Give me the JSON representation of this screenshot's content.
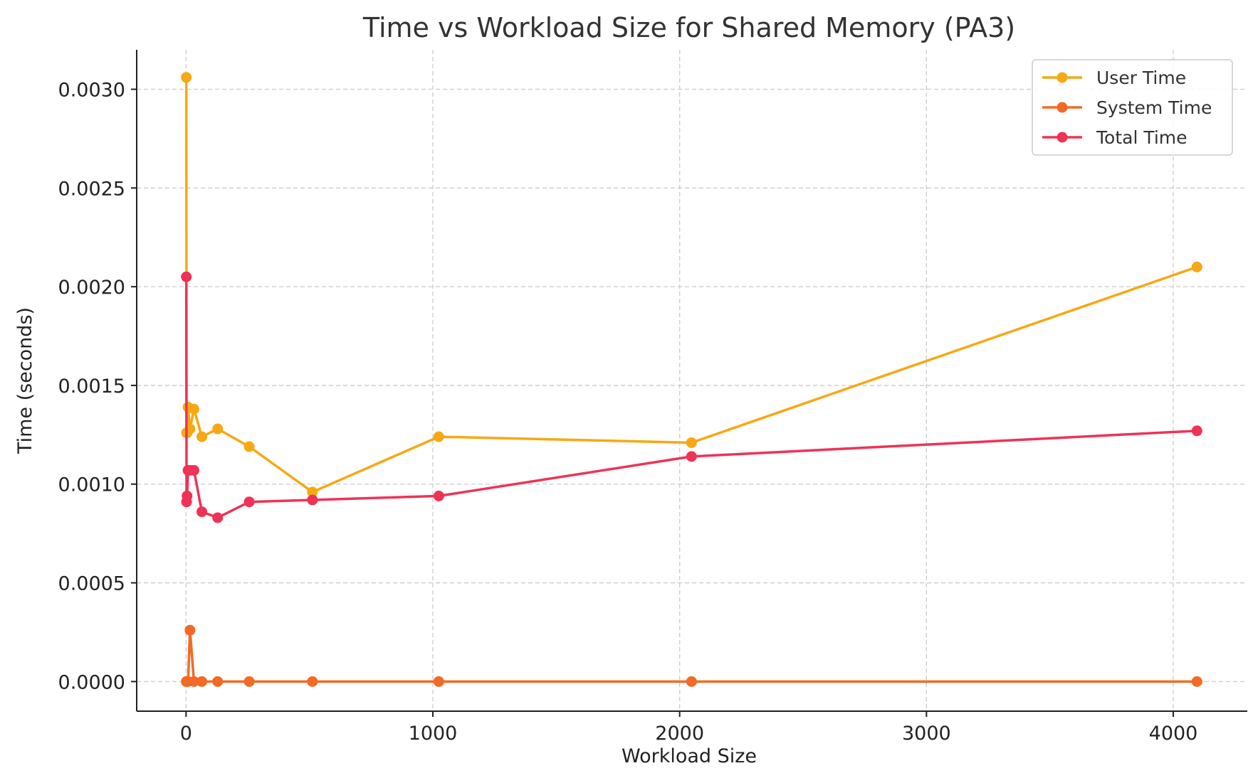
{
  "chart_data": {
    "type": "line",
    "title": "Time vs Workload Size for Shared Memory (PA3)",
    "xlabel": "Workload Size",
    "ylabel": "Time (seconds)",
    "xlim": [
      -200,
      4300
    ],
    "ylim": [
      -0.00015,
      0.0032
    ],
    "x_ticks": [
      0,
      1000,
      2000,
      3000,
      4000
    ],
    "x_tick_labels": [
      "0",
      "1000",
      "2000",
      "3000",
      "4000"
    ],
    "y_ticks": [
      0.0,
      0.0005,
      0.001,
      0.0015,
      0.002,
      0.0025,
      0.003
    ],
    "y_tick_labels": [
      "0.0000",
      "0.0005",
      "0.0010",
      "0.0015",
      "0.0020",
      "0.0025",
      "0.0030"
    ],
    "grid": true,
    "legend_position": "top-right",
    "x": [
      1,
      2,
      4,
      8,
      16,
      32,
      64,
      128,
      256,
      512,
      1024,
      2048,
      4096
    ],
    "series": [
      {
        "name": "User Time",
        "color": "#f7a813",
        "values": [
          0.00306,
          0.00126,
          0.00126,
          0.00139,
          0.00128,
          0.00138,
          0.00124,
          0.00128,
          0.00119,
          0.00096,
          0.00124,
          0.00121,
          0.0021
        ]
      },
      {
        "name": "System Time",
        "color": "#f26a25",
        "values": [
          0.0,
          0.0,
          0.0,
          0.0,
          0.00026,
          0.0,
          0.0,
          0.0,
          0.0,
          0.0,
          0.0,
          0.0,
          0.0
        ]
      },
      {
        "name": "Total Time",
        "color": "#ee3356",
        "values": [
          0.00205,
          0.00091,
          0.00094,
          0.00107,
          0.00107,
          0.00107,
          0.00086,
          0.00083,
          0.00091,
          0.00092,
          0.00094,
          0.00114,
          0.00127
        ]
      }
    ]
  }
}
